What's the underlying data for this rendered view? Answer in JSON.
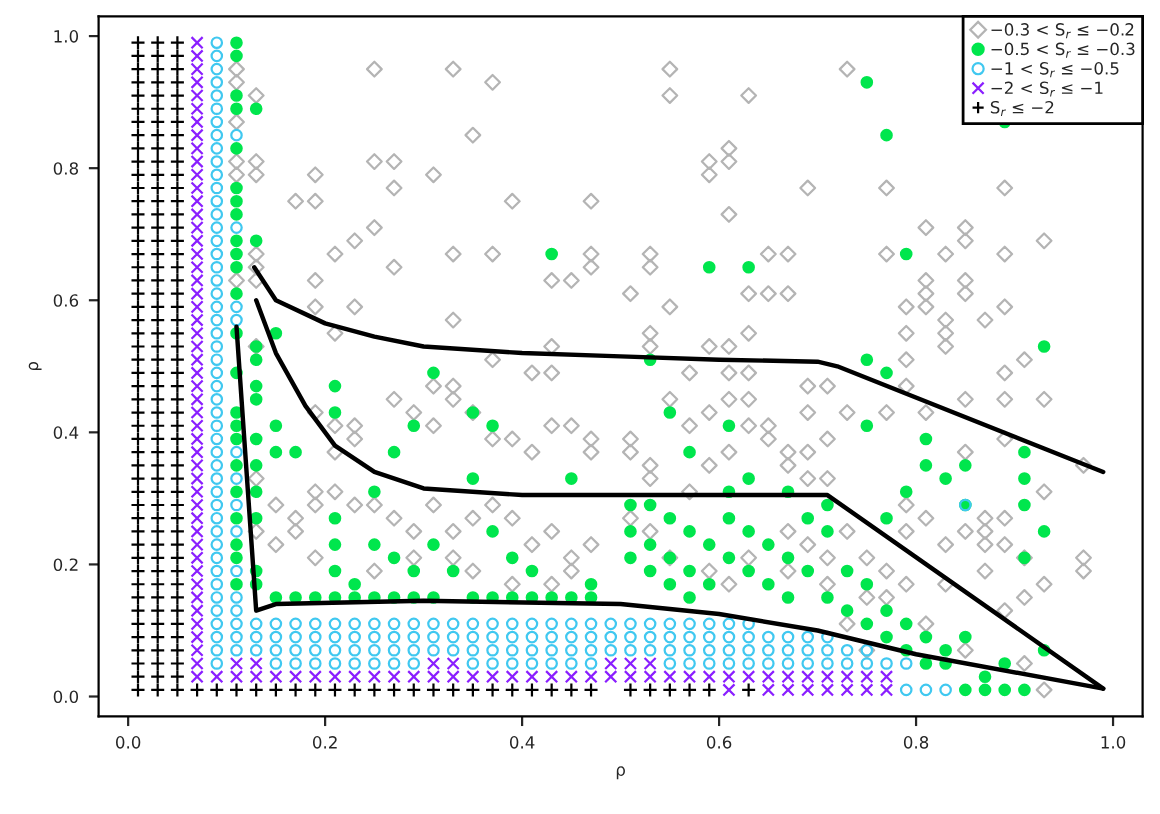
{
  "chart_data": {
    "type": "scatter",
    "xlabel": "ρ",
    "ylabel": "ρ",
    "xlim": [
      -0.03,
      1.03
    ],
    "ylim": [
      -0.03,
      1.03
    ],
    "xticks": [
      {
        "value": 0,
        "label": "0.0"
      },
      0.2,
      0.4,
      0.6,
      0.8,
      {
        "value": 1,
        "label": "1.0"
      }
    ],
    "yticks": [
      {
        "value": 0,
        "label": "0.0"
      },
      0.2,
      0.4,
      0.6,
      0.8,
      {
        "value": 1,
        "label": "1.0"
      }
    ],
    "grid": false,
    "legend": "top right",
    "series": [
      {
        "name": "−0.3 < S$_{r}$ ≤ −0.2",
        "marker": "diamond",
        "color": "#b4b4b4",
        "x": [
          0.25,
          0.33,
          0.37,
          0.35,
          0.25,
          0.27,
          0.19,
          0.31,
          0.27,
          0.17,
          0.19,
          0.39,
          0.47,
          0.25,
          0.21,
          0.23,
          0.33,
          0.37,
          0.47,
          0.47,
          0.27,
          0.19,
          0.43,
          0.45,
          0.19,
          0.23,
          0.33,
          0.21,
          0.43,
          0.37,
          0.41,
          0.43,
          0.31,
          0.33,
          0.11,
          0.11,
          0.11,
          0.11,
          0.11,
          0.11,
          0.13,
          0.13,
          0.13,
          0.13,
          0.13,
          0.13,
          0.13,
          0.55,
          0.73,
          0.55,
          0.63,
          0.59,
          0.61,
          0.59,
          0.61,
          0.69,
          0.77,
          0.89,
          0.61,
          0.81,
          0.85,
          0.85,
          0.93,
          0.53,
          0.53,
          0.65,
          0.67,
          0.77,
          0.83,
          0.89,
          0.51,
          0.63,
          0.65,
          0.67,
          0.81,
          0.81,
          0.85,
          0.85,
          0.55,
          0.79,
          0.81,
          0.89,
          0.83,
          0.87,
          0.53,
          0.53,
          0.63,
          0.79,
          0.83,
          0.83,
          0.59,
          0.61,
          0.57,
          0.61,
          0.63,
          0.79,
          0.89,
          0.91,
          0.69,
          0.71,
          0.79,
          0.89,
          0.93,
          0.85,
          0.81,
          0.77,
          0.73,
          0.69,
          0.89,
          0.85,
          0.97,
          0.93,
          0.87,
          0.89,
          0.87,
          0.89,
          0.87,
          0.91,
          0.81,
          0.85,
          0.83,
          0.79,
          0.79,
          0.93,
          0.91,
          0.89,
          0.87,
          0.83,
          0.79,
          0.77,
          0.75,
          0.97,
          0.97,
          0.93,
          0.51,
          0.51,
          0.53,
          0.53,
          0.57,
          0.59,
          0.61,
          0.63,
          0.65,
          0.65,
          0.67,
          0.67,
          0.69,
          0.71,
          0.69,
          0.71,
          0.57,
          0.59,
          0.55,
          0.61,
          0.63,
          0.51,
          0.53,
          0.55,
          0.59,
          0.63,
          0.67,
          0.69,
          0.71,
          0.73,
          0.71,
          0.61,
          0.67,
          0.75,
          0.77,
          0.73,
          0.75,
          0.81,
          0.85,
          0.91,
          0.19,
          0.21,
          0.21,
          0.23,
          0.23,
          0.27,
          0.29,
          0.31,
          0.33,
          0.35,
          0.37,
          0.39,
          0.41,
          0.43,
          0.45,
          0.47,
          0.47,
          0.13,
          0.15,
          0.17,
          0.19,
          0.19,
          0.21,
          0.23,
          0.25,
          0.27,
          0.29,
          0.31,
          0.33,
          0.35,
          0.37,
          0.39,
          0.41,
          0.43,
          0.45,
          0.47,
          0.13,
          0.15,
          0.17,
          0.19,
          0.25,
          0.29,
          0.33,
          0.35,
          0.39,
          0.43,
          0.45
        ],
        "values": [
          0.95,
          0.95,
          0.93,
          0.85,
          0.81,
          0.81,
          0.79,
          0.79,
          0.77,
          0.75,
          0.75,
          0.75,
          0.75,
          0.71,
          0.67,
          0.69,
          0.67,
          0.67,
          0.67,
          0.65,
          0.65,
          0.63,
          0.63,
          0.63,
          0.59,
          0.59,
          0.57,
          0.55,
          0.53,
          0.51,
          0.49,
          0.49,
          0.47,
          0.47,
          0.95,
          0.93,
          0.87,
          0.81,
          0.79,
          0.63,
          0.91,
          0.81,
          0.79,
          0.67,
          0.65,
          0.63,
          0.53,
          0.95,
          0.95,
          0.91,
          0.91,
          0.81,
          0.83,
          0.79,
          0.81,
          0.77,
          0.77,
          0.77,
          0.73,
          0.71,
          0.71,
          0.69,
          0.69,
          0.67,
          0.65,
          0.67,
          0.67,
          0.67,
          0.67,
          0.67,
          0.61,
          0.61,
          0.61,
          0.61,
          0.63,
          0.61,
          0.63,
          0.61,
          0.59,
          0.59,
          0.59,
          0.59,
          0.57,
          0.57,
          0.55,
          0.53,
          0.55,
          0.55,
          0.55,
          0.53,
          0.53,
          0.53,
          0.49,
          0.49,
          0.49,
          0.51,
          0.49,
          0.51,
          0.47,
          0.47,
          0.47,
          0.45,
          0.45,
          0.45,
          0.43,
          0.43,
          0.43,
          0.43,
          0.39,
          0.37,
          0.35,
          0.31,
          0.27,
          0.27,
          0.25,
          0.23,
          0.23,
          0.21,
          0.27,
          0.25,
          0.23,
          0.29,
          0.25,
          0.17,
          0.15,
          0.13,
          0.19,
          0.17,
          0.17,
          0.15,
          0.15,
          0.21,
          0.19,
          0.01,
          0.39,
          0.37,
          0.35,
          0.33,
          0.31,
          0.35,
          0.37,
          0.41,
          0.41,
          0.39,
          0.37,
          0.35,
          0.33,
          0.33,
          0.37,
          0.39,
          0.41,
          0.43,
          0.45,
          0.45,
          0.45,
          0.27,
          0.25,
          0.21,
          0.19,
          0.21,
          0.25,
          0.23,
          0.21,
          0.25,
          0.17,
          0.17,
          0.19,
          0.21,
          0.19,
          0.11,
          0.07,
          0.11,
          0.07,
          0.05,
          0.43,
          0.41,
          0.37,
          0.41,
          0.39,
          0.45,
          0.43,
          0.41,
          0.45,
          0.43,
          0.39,
          0.39,
          0.37,
          0.41,
          0.41,
          0.39,
          0.37,
          0.33,
          0.29,
          0.27,
          0.31,
          0.29,
          0.31,
          0.29,
          0.29,
          0.27,
          0.25,
          0.29,
          0.25,
          0.27,
          0.29,
          0.27,
          0.23,
          0.25,
          0.21,
          0.23,
          0.25,
          0.23,
          0.25,
          0.21,
          0.19,
          0.21,
          0.21,
          0.19,
          0.17,
          0.17,
          0.19
        ]
      },
      {
        "name": "−0.5 < S$_{r}$ ≤ −0.3",
        "marker": "circle",
        "color": "#00e64d",
        "x": [
          0.11,
          0.11,
          0.11,
          0.11,
          0.11,
          0.11,
          0.11,
          0.11,
          0.11,
          0.11,
          0.11,
          0.11,
          0.13,
          0.13,
          0.13,
          0.13,
          0.15,
          0.43,
          0.31,
          0.21,
          0.11,
          0.11,
          0.11,
          0.11,
          0.11,
          0.11,
          0.11,
          0.11,
          0.11,
          0.11,
          0.11,
          0.13,
          0.13,
          0.13,
          0.13,
          0.13,
          0.13,
          0.13,
          0.13,
          0.15,
          0.15,
          0.17,
          0.21,
          0.21,
          0.21,
          0.21,
          0.23,
          0.25,
          0.25,
          0.27,
          0.27,
          0.29,
          0.29,
          0.31,
          0.31,
          0.33,
          0.35,
          0.35,
          0.35,
          0.37,
          0.37,
          0.37,
          0.39,
          0.39,
          0.41,
          0.41,
          0.43,
          0.45,
          0.45,
          0.47,
          0.47,
          0.19,
          0.21,
          0.23,
          0.25,
          0.27,
          0.29,
          0.17,
          0.15,
          0.75,
          0.77,
          0.89,
          0.59,
          0.63,
          0.79,
          0.93,
          0.53,
          0.75,
          0.77,
          0.51,
          0.51,
          0.51,
          0.53,
          0.53,
          0.53,
          0.55,
          0.55,
          0.55,
          0.57,
          0.57,
          0.57,
          0.59,
          0.59,
          0.61,
          0.61,
          0.63,
          0.63,
          0.65,
          0.65,
          0.67,
          0.67,
          0.69,
          0.69,
          0.71,
          0.71,
          0.73,
          0.73,
          0.75,
          0.75,
          0.77,
          0.77,
          0.79,
          0.79,
          0.81,
          0.81,
          0.83,
          0.83,
          0.85,
          0.85,
          0.87,
          0.87,
          0.89,
          0.89,
          0.91,
          0.93,
          0.57,
          0.61,
          0.61,
          0.55,
          0.63,
          0.67,
          0.71,
          0.75,
          0.81,
          0.83,
          0.85,
          0.85,
          0.91,
          0.91,
          0.91,
          0.93,
          0.91,
          0.81,
          0.79,
          0.77
        ],
        "values": [
          0.99,
          0.97,
          0.91,
          0.89,
          0.83,
          0.77,
          0.75,
          0.73,
          0.69,
          0.67,
          0.65,
          0.61,
          0.89,
          0.69,
          0.53,
          0.51,
          0.55,
          0.67,
          0.49,
          0.47,
          0.55,
          0.49,
          0.43,
          0.41,
          0.39,
          0.35,
          0.31,
          0.27,
          0.23,
          0.21,
          0.17,
          0.47,
          0.45,
          0.39,
          0.35,
          0.31,
          0.27,
          0.19,
          0.17,
          0.41,
          0.37,
          0.37,
          0.43,
          0.27,
          0.23,
          0.19,
          0.17,
          0.31,
          0.23,
          0.21,
          0.37,
          0.41,
          0.19,
          0.15,
          0.23,
          0.19,
          0.43,
          0.15,
          0.33,
          0.41,
          0.25,
          0.15,
          0.21,
          0.15,
          0.19,
          0.15,
          0.15,
          0.33,
          0.15,
          0.15,
          0.17,
          0.15,
          0.15,
          0.15,
          0.15,
          0.15,
          0.15,
          0.15,
          0.15,
          0.93,
          0.85,
          0.87,
          0.65,
          0.65,
          0.67,
          0.53,
          0.51,
          0.51,
          0.49,
          0.29,
          0.25,
          0.21,
          0.29,
          0.23,
          0.19,
          0.27,
          0.21,
          0.17,
          0.25,
          0.19,
          0.15,
          0.23,
          0.17,
          0.27,
          0.21,
          0.25,
          0.19,
          0.23,
          0.17,
          0.21,
          0.15,
          0.27,
          0.19,
          0.25,
          0.15,
          0.19,
          0.13,
          0.17,
          0.11,
          0.13,
          0.09,
          0.11,
          0.07,
          0.09,
          0.05,
          0.07,
          0.05,
          0.09,
          0.01,
          0.03,
          0.01,
          0.05,
          0.01,
          0.01,
          0.07,
          0.37,
          0.31,
          0.41,
          0.43,
          0.33,
          0.31,
          0.29,
          0.41,
          0.35,
          0.33,
          0.29,
          0.35,
          0.37,
          0.33,
          0.29,
          0.25,
          0.21,
          0.39,
          0.31,
          0.27
        ]
      },
      {
        "name": "−1 < S$_{r}$ ≤ −0.5",
        "marker": "circle",
        "color": "#40c8f0",
        "x": [
          0.09,
          0.09,
          0.09,
          0.09,
          0.09,
          0.09,
          0.09,
          0.09,
          0.09,
          0.09,
          0.09,
          0.09,
          0.09,
          0.09,
          0.09,
          0.09,
          0.09,
          0.09,
          0.09,
          0.09,
          0.09,
          0.09,
          0.09,
          0.09,
          0.09,
          0.09,
          0.09,
          0.09,
          0.09,
          0.09,
          0.09,
          0.09,
          0.09,
          0.09,
          0.09,
          0.09,
          0.09,
          0.09,
          0.09,
          0.09,
          0.09,
          0.09,
          0.09,
          0.09,
          0.09,
          0.09,
          0.09,
          0.09,
          0.11,
          0.11,
          0.11,
          0.11,
          0.11,
          0.11,
          0.11,
          0.11,
          0.11,
          0.11,
          0.11,
          0.15,
          0.17,
          0.19,
          0.21,
          0.23,
          0.25,
          0.27,
          0.29,
          0.35,
          0.37,
          0.39,
          0.41,
          0.43,
          0.45,
          0.47,
          0.11,
          0.13,
          0.15,
          0.17,
          0.19,
          0.21,
          0.23,
          0.25,
          0.27,
          0.29,
          0.31,
          0.33,
          0.35,
          0.37,
          0.39,
          0.41,
          0.43,
          0.45,
          0.47,
          0.11,
          0.13,
          0.15,
          0.17,
          0.19,
          0.21,
          0.23,
          0.25,
          0.27,
          0.29,
          0.31,
          0.33,
          0.35,
          0.37,
          0.39,
          0.41,
          0.43,
          0.45,
          0.47,
          0.11,
          0.13,
          0.15,
          0.17,
          0.19,
          0.21,
          0.23,
          0.25,
          0.27,
          0.29,
          0.31,
          0.33,
          0.35,
          0.37,
          0.39,
          0.41,
          0.43,
          0.45,
          0.47,
          0.55,
          0.57,
          0.59,
          0.61,
          0.63,
          0.65,
          0.67,
          0.69,
          0.71,
          0.73,
          0.75,
          0.77,
          0.79,
          0.49,
          0.51,
          0.53,
          0.55,
          0.57,
          0.59,
          0.61,
          0.63,
          0.65,
          0.67,
          0.69,
          0.71,
          0.73,
          0.75,
          0.49,
          0.51,
          0.53,
          0.55,
          0.57,
          0.59,
          0.61,
          0.63,
          0.65,
          0.67,
          0.69,
          0.71,
          0.49,
          0.51,
          0.53,
          0.55,
          0.57,
          0.59,
          0.61,
          0.63,
          0.79,
          0.81,
          0.83,
          0.85
        ],
        "values": [
          0.05,
          0.07,
          0.09,
          0.11,
          0.13,
          0.15,
          0.17,
          0.19,
          0.21,
          0.23,
          0.25,
          0.27,
          0.29,
          0.31,
          0.33,
          0.35,
          0.37,
          0.39,
          0.41,
          0.43,
          0.45,
          0.47,
          0.49,
          0.51,
          0.53,
          0.55,
          0.57,
          0.59,
          0.61,
          0.63,
          0.65,
          0.67,
          0.69,
          0.71,
          0.73,
          0.75,
          0.77,
          0.79,
          0.81,
          0.83,
          0.85,
          0.87,
          0.89,
          0.91,
          0.93,
          0.95,
          0.97,
          0.99,
          0.85,
          0.71,
          0.59,
          0.57,
          0.37,
          0.33,
          0.29,
          0.25,
          0.19,
          0.15,
          0.13,
          0.05,
          0.05,
          0.05,
          0.05,
          0.05,
          0.05,
          0.05,
          0.05,
          0.05,
          0.05,
          0.05,
          0.05,
          0.05,
          0.05,
          0.05,
          0.07,
          0.07,
          0.07,
          0.07,
          0.07,
          0.07,
          0.07,
          0.07,
          0.07,
          0.07,
          0.07,
          0.07,
          0.07,
          0.07,
          0.07,
          0.07,
          0.07,
          0.07,
          0.07,
          0.09,
          0.09,
          0.09,
          0.09,
          0.09,
          0.09,
          0.09,
          0.09,
          0.09,
          0.09,
          0.09,
          0.09,
          0.09,
          0.09,
          0.09,
          0.09,
          0.09,
          0.09,
          0.09,
          0.11,
          0.11,
          0.11,
          0.11,
          0.11,
          0.11,
          0.11,
          0.11,
          0.11,
          0.11,
          0.11,
          0.11,
          0.11,
          0.11,
          0.11,
          0.11,
          0.11,
          0.11,
          0.11,
          0.05,
          0.05,
          0.05,
          0.05,
          0.05,
          0.05,
          0.05,
          0.05,
          0.05,
          0.05,
          0.05,
          0.05,
          0.05,
          0.07,
          0.07,
          0.07,
          0.07,
          0.07,
          0.07,
          0.07,
          0.07,
          0.07,
          0.07,
          0.07,
          0.07,
          0.07,
          0.07,
          0.09,
          0.09,
          0.09,
          0.09,
          0.09,
          0.09,
          0.09,
          0.09,
          0.09,
          0.09,
          0.09,
          0.09,
          0.11,
          0.11,
          0.11,
          0.11,
          0.11,
          0.11,
          0.11,
          0.11,
          0.01,
          0.01,
          0.01,
          0.29
        ]
      },
      {
        "name": "−2 < S$_{r}$ ≤ −1",
        "marker": "cross",
        "color": "#8a1fff",
        "x": [
          0.07,
          0.07,
          0.07,
          0.07,
          0.07,
          0.07,
          0.07,
          0.07,
          0.07,
          0.07,
          0.07,
          0.07,
          0.07,
          0.07,
          0.07,
          0.07,
          0.07,
          0.07,
          0.07,
          0.07,
          0.07,
          0.07,
          0.07,
          0.07,
          0.07,
          0.07,
          0.07,
          0.07,
          0.07,
          0.07,
          0.07,
          0.07,
          0.07,
          0.07,
          0.07,
          0.07,
          0.07,
          0.07,
          0.07,
          0.07,
          0.07,
          0.07,
          0.07,
          0.07,
          0.07,
          0.07,
          0.07,
          0.07,
          0.07,
          0.09,
          0.11,
          0.13,
          0.15,
          0.17,
          0.19,
          0.21,
          0.23,
          0.25,
          0.27,
          0.29,
          0.31,
          0.33,
          0.35,
          0.37,
          0.39,
          0.41,
          0.43,
          0.45,
          0.47,
          0.11,
          0.13,
          0.31,
          0.33,
          0.49,
          0.51,
          0.53,
          0.49,
          0.51,
          0.53,
          0.55,
          0.57,
          0.59,
          0.61,
          0.63,
          0.65,
          0.67,
          0.69,
          0.71,
          0.73,
          0.75,
          0.77,
          0.61,
          0.65,
          0.67,
          0.69,
          0.71,
          0.73,
          0.75,
          0.77
        ],
        "values": [
          0.03,
          0.05,
          0.07,
          0.09,
          0.11,
          0.13,
          0.15,
          0.17,
          0.19,
          0.21,
          0.23,
          0.25,
          0.27,
          0.29,
          0.31,
          0.33,
          0.35,
          0.37,
          0.39,
          0.41,
          0.43,
          0.45,
          0.47,
          0.49,
          0.51,
          0.53,
          0.55,
          0.57,
          0.59,
          0.61,
          0.63,
          0.65,
          0.67,
          0.69,
          0.71,
          0.73,
          0.75,
          0.77,
          0.79,
          0.81,
          0.83,
          0.85,
          0.87,
          0.89,
          0.91,
          0.93,
          0.95,
          0.97,
          0.99,
          0.03,
          0.03,
          0.03,
          0.03,
          0.03,
          0.03,
          0.03,
          0.03,
          0.03,
          0.03,
          0.03,
          0.03,
          0.03,
          0.03,
          0.03,
          0.03,
          0.03,
          0.03,
          0.03,
          0.03,
          0.05,
          0.05,
          0.05,
          0.05,
          0.05,
          0.05,
          0.05,
          0.03,
          0.03,
          0.03,
          0.03,
          0.03,
          0.03,
          0.03,
          0.03,
          0.03,
          0.03,
          0.03,
          0.03,
          0.03,
          0.03,
          0.03,
          0.01,
          0.01,
          0.01,
          0.01,
          0.01,
          0.01,
          0.01,
          0.01
        ]
      },
      {
        "name": "S$_{r}$ ≤ −2",
        "marker": "plus",
        "color": "#000000",
        "x": [
          0.01,
          0.01,
          0.01,
          0.01,
          0.01,
          0.01,
          0.01,
          0.01,
          0.01,
          0.01,
          0.01,
          0.01,
          0.01,
          0.01,
          0.01,
          0.01,
          0.01,
          0.01,
          0.01,
          0.01,
          0.01,
          0.01,
          0.01,
          0.01,
          0.01,
          0.01,
          0.01,
          0.01,
          0.01,
          0.01,
          0.01,
          0.01,
          0.01,
          0.01,
          0.01,
          0.01,
          0.01,
          0.01,
          0.01,
          0.01,
          0.01,
          0.01,
          0.01,
          0.01,
          0.01,
          0.01,
          0.01,
          0.01,
          0.01,
          0.01,
          0.03,
          0.03,
          0.03,
          0.03,
          0.03,
          0.03,
          0.03,
          0.03,
          0.03,
          0.03,
          0.03,
          0.03,
          0.03,
          0.03,
          0.03,
          0.03,
          0.03,
          0.03,
          0.03,
          0.03,
          0.03,
          0.03,
          0.03,
          0.03,
          0.03,
          0.03,
          0.03,
          0.03,
          0.03,
          0.03,
          0.03,
          0.03,
          0.03,
          0.03,
          0.03,
          0.03,
          0.03,
          0.03,
          0.03,
          0.03,
          0.03,
          0.03,
          0.03,
          0.03,
          0.03,
          0.03,
          0.03,
          0.03,
          0.03,
          0.03,
          0.05,
          0.05,
          0.05,
          0.05,
          0.05,
          0.05,
          0.05,
          0.05,
          0.05,
          0.05,
          0.05,
          0.05,
          0.05,
          0.05,
          0.05,
          0.05,
          0.05,
          0.05,
          0.05,
          0.05,
          0.05,
          0.05,
          0.05,
          0.05,
          0.05,
          0.05,
          0.05,
          0.05,
          0.05,
          0.05,
          0.05,
          0.05,
          0.05,
          0.05,
          0.05,
          0.05,
          0.05,
          0.05,
          0.05,
          0.05,
          0.05,
          0.05,
          0.05,
          0.05,
          0.05,
          0.05,
          0.05,
          0.05,
          0.05,
          0.05,
          0.07,
          0.09,
          0.11,
          0.13,
          0.15,
          0.17,
          0.19,
          0.21,
          0.23,
          0.25,
          0.27,
          0.29,
          0.31,
          0.33,
          0.35,
          0.37,
          0.39,
          0.41,
          0.43,
          0.45,
          0.47,
          0.51,
          0.53,
          0.55,
          0.57,
          0.59,
          0.63
        ],
        "values": [
          0.01,
          0.03,
          0.05,
          0.07,
          0.09,
          0.11,
          0.13,
          0.15,
          0.17,
          0.19,
          0.21,
          0.23,
          0.25,
          0.27,
          0.29,
          0.31,
          0.33,
          0.35,
          0.37,
          0.39,
          0.41,
          0.43,
          0.45,
          0.47,
          0.49,
          0.51,
          0.53,
          0.55,
          0.57,
          0.59,
          0.61,
          0.63,
          0.65,
          0.67,
          0.69,
          0.71,
          0.73,
          0.75,
          0.77,
          0.79,
          0.81,
          0.83,
          0.85,
          0.87,
          0.89,
          0.91,
          0.93,
          0.95,
          0.97,
          0.99,
          0.01,
          0.03,
          0.05,
          0.07,
          0.09,
          0.11,
          0.13,
          0.15,
          0.17,
          0.19,
          0.21,
          0.23,
          0.25,
          0.27,
          0.29,
          0.31,
          0.33,
          0.35,
          0.37,
          0.39,
          0.41,
          0.43,
          0.45,
          0.47,
          0.49,
          0.51,
          0.53,
          0.55,
          0.57,
          0.59,
          0.61,
          0.63,
          0.65,
          0.67,
          0.69,
          0.71,
          0.73,
          0.75,
          0.77,
          0.79,
          0.81,
          0.83,
          0.85,
          0.87,
          0.89,
          0.91,
          0.93,
          0.95,
          0.97,
          0.99,
          0.01,
          0.03,
          0.05,
          0.07,
          0.09,
          0.11,
          0.13,
          0.15,
          0.17,
          0.19,
          0.21,
          0.23,
          0.25,
          0.27,
          0.29,
          0.31,
          0.33,
          0.35,
          0.37,
          0.39,
          0.41,
          0.43,
          0.45,
          0.47,
          0.49,
          0.51,
          0.53,
          0.55,
          0.57,
          0.59,
          0.61,
          0.63,
          0.65,
          0.67,
          0.69,
          0.71,
          0.73,
          0.75,
          0.77,
          0.79,
          0.81,
          0.83,
          0.85,
          0.87,
          0.89,
          0.91,
          0.93,
          0.95,
          0.97,
          0.99,
          0.01,
          0.01,
          0.01,
          0.01,
          0.01,
          0.01,
          0.01,
          0.01,
          0.01,
          0.01,
          0.01,
          0.01,
          0.01,
          0.01,
          0.01,
          0.01,
          0.01,
          0.01,
          0.01,
          0.01,
          0.01,
          0.01,
          0.01,
          0.01,
          0.01,
          0.01,
          0.01
        ]
      },
      {
        "type": "line",
        "color": "#000000",
        "x": [
          0.128,
          0.15,
          0.2,
          0.25,
          0.3,
          0.4,
          0.5,
          0.6,
          0.7,
          0.72,
          0.99
        ],
        "values": [
          0.65,
          0.6,
          0.565,
          0.545,
          0.53,
          0.52,
          0.515,
          0.51,
          0.507,
          0.5,
          0.34
        ]
      },
      {
        "type": "line",
        "color": "#000000",
        "x": [
          0.13,
          0.15,
          0.18,
          0.21,
          0.25,
          0.3,
          0.4,
          0.6,
          0.71,
          0.99
        ],
        "values": [
          0.6,
          0.52,
          0.44,
          0.38,
          0.34,
          0.315,
          0.305,
          0.305,
          0.305,
          0.012
        ]
      },
      {
        "type": "line",
        "color": "#000000",
        "x": [
          0.11,
          0.13,
          0.15,
          0.3,
          0.5,
          0.6,
          0.7,
          0.8,
          0.99
        ],
        "values": [
          0.56,
          0.13,
          0.14,
          0.145,
          0.14,
          0.125,
          0.1,
          0.064,
          0.012
        ]
      }
    ]
  }
}
